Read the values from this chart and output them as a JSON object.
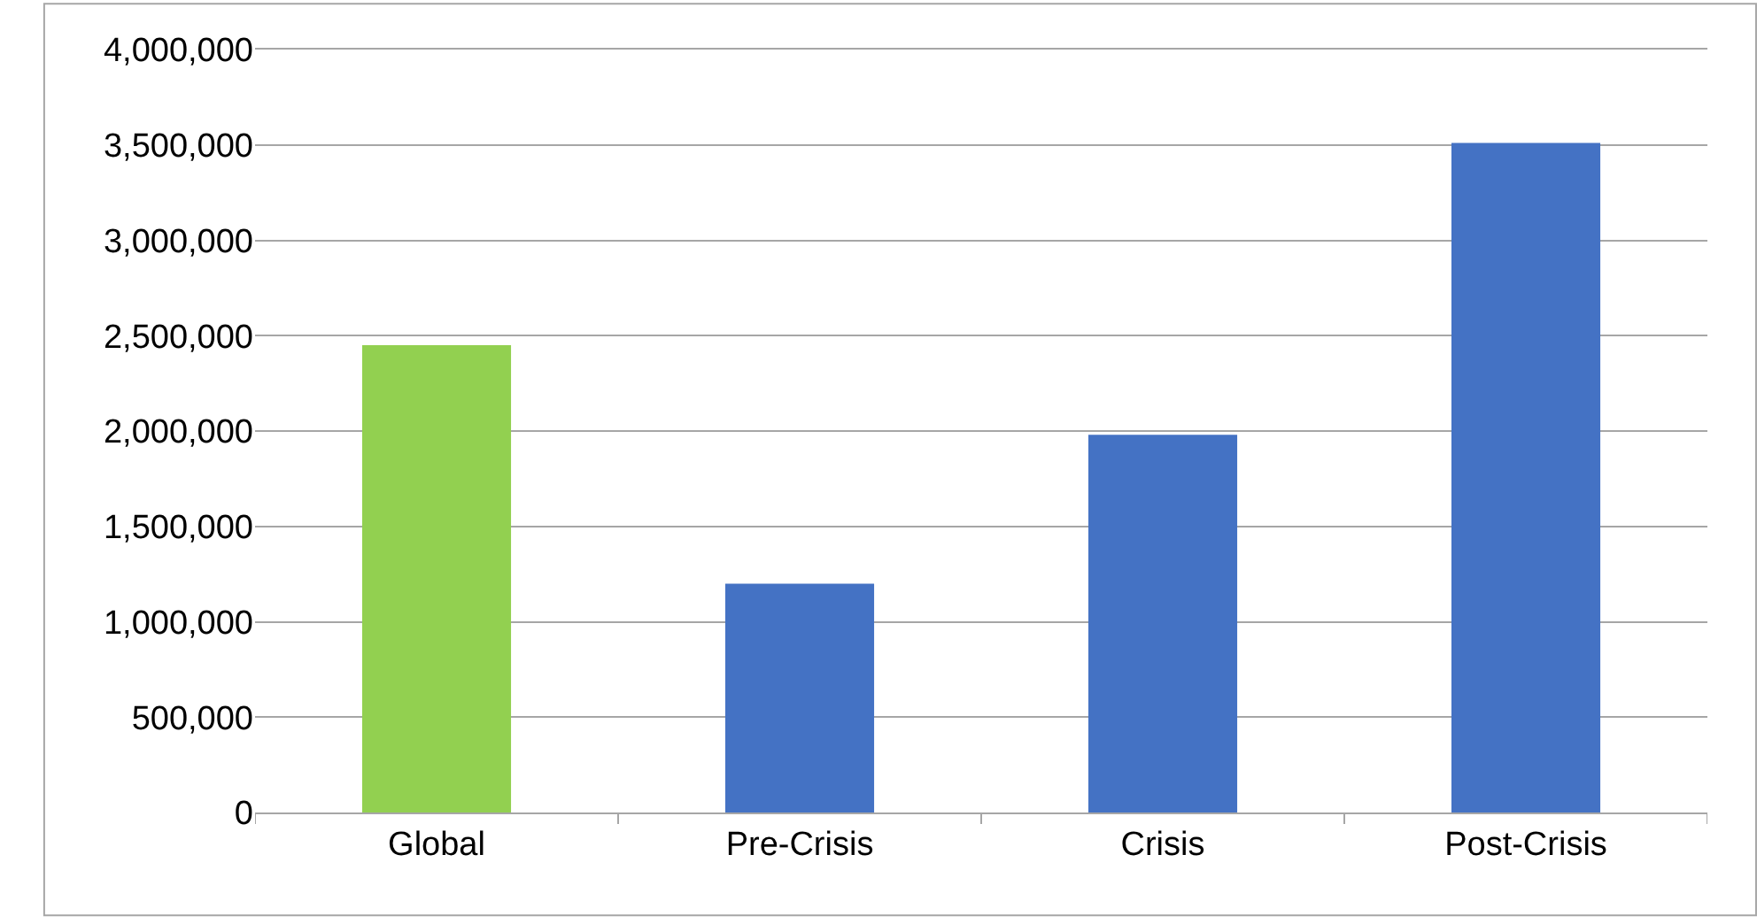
{
  "chart_data": {
    "type": "bar",
    "categories": [
      "Global",
      "Pre-Crisis",
      "Crisis",
      "Post-Crisis"
    ],
    "values": [
      2450000,
      1200000,
      1980000,
      3510000
    ],
    "colors": [
      "#92d050",
      "#4472c4",
      "#4472c4",
      "#4472c4"
    ],
    "ylim": [
      0,
      4000000
    ],
    "yticks": [
      {
        "value": 0,
        "label": "0"
      },
      {
        "value": 500000,
        "label": "500,000"
      },
      {
        "value": 1000000,
        "label": "1,000,000"
      },
      {
        "value": 1500000,
        "label": "1,500,000"
      },
      {
        "value": 2000000,
        "label": "2,000,000"
      },
      {
        "value": 2500000,
        "label": "2,500,000"
      },
      {
        "value": 3000000,
        "label": "3,000,000"
      },
      {
        "value": 3500000,
        "label": "3,500,000"
      },
      {
        "value": 4000000,
        "label": "4,000,000"
      }
    ],
    "grid": "y"
  }
}
